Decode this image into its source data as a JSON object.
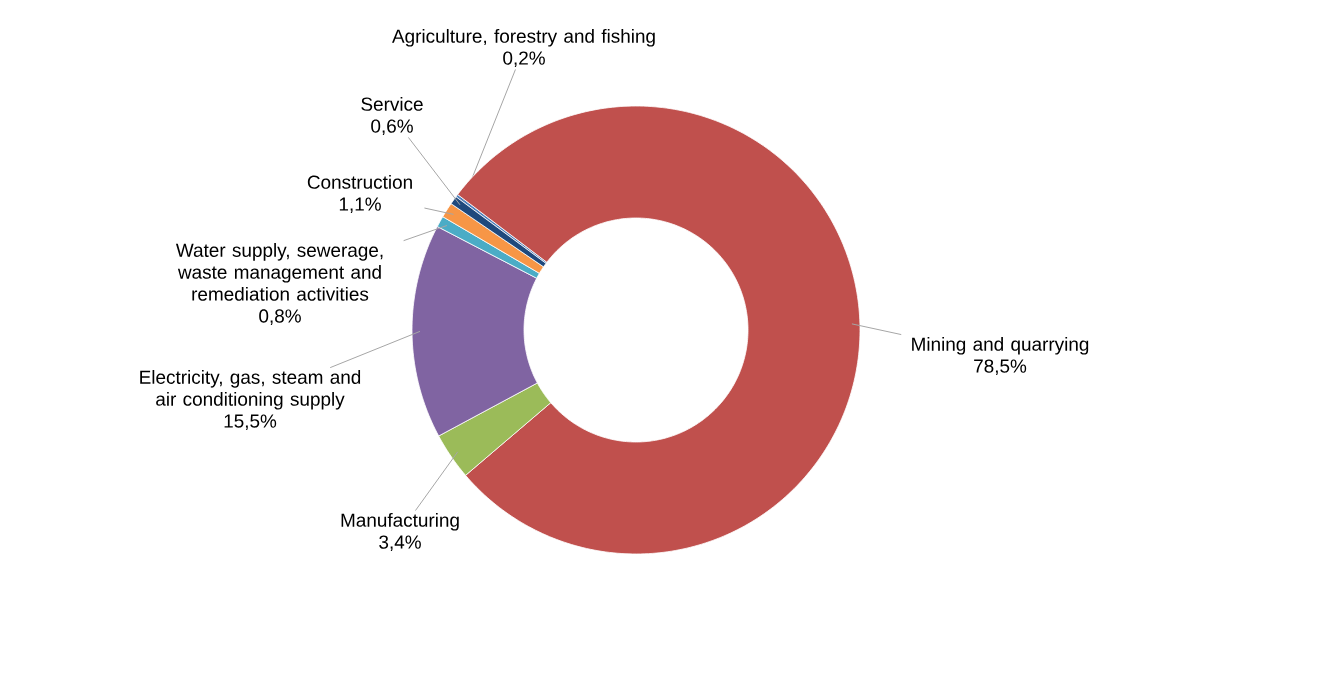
{
  "chart_data": {
    "type": "donut",
    "categories": [
      "Agriculture, forestry and fishing",
      "Mining and quarrying",
      "Manufacturing",
      "Electricity, gas, steam and air conditioning supply",
      "Water supply, sewerage, waste management and remediation activities",
      "Construction",
      "Service"
    ],
    "values": [
      0.2,
      78.5,
      3.4,
      15.5,
      0.8,
      1.1,
      0.6
    ],
    "value_labels": [
      "0,2%",
      "78,5%",
      "3,4%",
      "15,5%",
      "0,8%",
      "1,1%",
      "0,6%"
    ],
    "colors": [
      "#4f81bd",
      "#c0504d",
      "#9bbb59",
      "#8064a2",
      "#4bacc6",
      "#f79646",
      "#1f497d"
    ]
  }
}
